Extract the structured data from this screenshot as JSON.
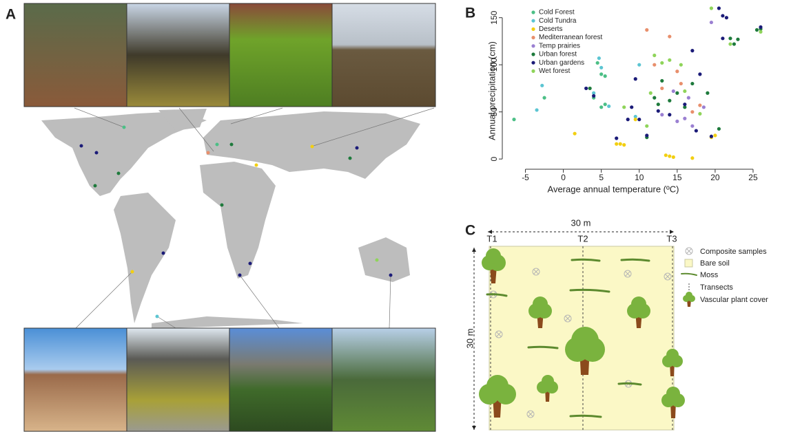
{
  "panel_labels": [
    "A",
    "B",
    "C"
  ],
  "chart_data": {
    "type": "scatter",
    "xlabel": "Average annual temperature (ºC)",
    "ylabel": "Annual precipitation (cm)",
    "xlim": [
      -7.5,
      27
    ],
    "ylim": [
      -5,
      160
    ],
    "xticks": [
      -5,
      0,
      5,
      10,
      15,
      20,
      25
    ],
    "yticks": [
      0,
      50,
      100,
      150
    ],
    "legend": "top-left",
    "series": [
      {
        "name": "Cold Forest",
        "color": "#4cbf86",
        "x": [
          -6.5,
          -2.5,
          4.5,
          5,
          5.5,
          5,
          4,
          5.5
        ],
        "values": [
          42,
          65,
          102,
          90,
          58,
          55,
          65,
          88
        ]
      },
      {
        "name": "Cold Tundra",
        "color": "#5cc5d2",
        "x": [
          -3.5,
          -2.8,
          4.7,
          5,
          4,
          6,
          9.5,
          10
        ],
        "values": [
          52,
          78,
          107,
          97,
          70,
          56,
          45,
          100
        ]
      },
      {
        "name": "Deserts",
        "color": "#f2cf12",
        "x": [
          1.5,
          7,
          7.5,
          8,
          9.5,
          13.5,
          14,
          14.5,
          17,
          19.5,
          20
        ],
        "values": [
          27,
          16,
          16,
          15,
          42,
          4,
          3,
          2,
          1,
          23,
          25
        ]
      },
      {
        "name": "Mediterranean forest",
        "color": "#e88f6c",
        "x": [
          11,
          14,
          15,
          17,
          18,
          12,
          13,
          15.5
        ],
        "values": [
          137,
          130,
          93,
          50,
          57,
          100,
          75,
          80
        ]
      },
      {
        "name": "Temp prairies",
        "color": "#9b80d2",
        "x": [
          14.5,
          15,
          16,
          17,
          18.5,
          19.5,
          13,
          16.5
        ],
        "values": [
          72,
          40,
          43,
          35,
          55,
          145,
          47,
          65
        ]
      },
      {
        "name": "Urban forest",
        "color": "#1e7a3c",
        "x": [
          3.5,
          12,
          12.5,
          13,
          14,
          15,
          16,
          17,
          19,
          20.5,
          22,
          22.5,
          23,
          25.5,
          26,
          11
        ],
        "values": [
          75,
          65,
          58,
          83,
          62,
          70,
          55,
          80,
          70,
          32,
          128,
          122,
          127,
          137,
          138,
          23
        ]
      },
      {
        "name": "Urban gardens",
        "color": "#1b1b78",
        "x": [
          3,
          4,
          7,
          8.5,
          9,
          9.5,
          11,
          12.5,
          14,
          16,
          17.5,
          18,
          19.5,
          20.5,
          21,
          21.5,
          21,
          26,
          17,
          10
        ],
        "values": [
          75,
          67,
          22,
          42,
          55,
          85,
          25,
          51,
          47,
          58,
          30,
          90,
          24,
          160,
          152,
          150,
          128,
          140,
          115,
          42
        ]
      },
      {
        "name": "Wet forest",
        "color": "#8fd45a",
        "x": [
          8,
          11,
          11.5,
          12,
          13,
          14,
          15.5,
          16,
          18,
          19.5,
          22,
          26
        ],
        "values": [
          55,
          35,
          70,
          110,
          102,
          105,
          100,
          72,
          48,
          160,
          122,
          135
        ]
      }
    ]
  },
  "diagram": {
    "width_label": "30 m",
    "height_label": "30 m",
    "transects": [
      "T1",
      "T2",
      "T3"
    ],
    "legend": [
      "Composite samples",
      "Bare soil",
      "Moss",
      "Transects",
      "Vascular plant cover"
    ]
  }
}
